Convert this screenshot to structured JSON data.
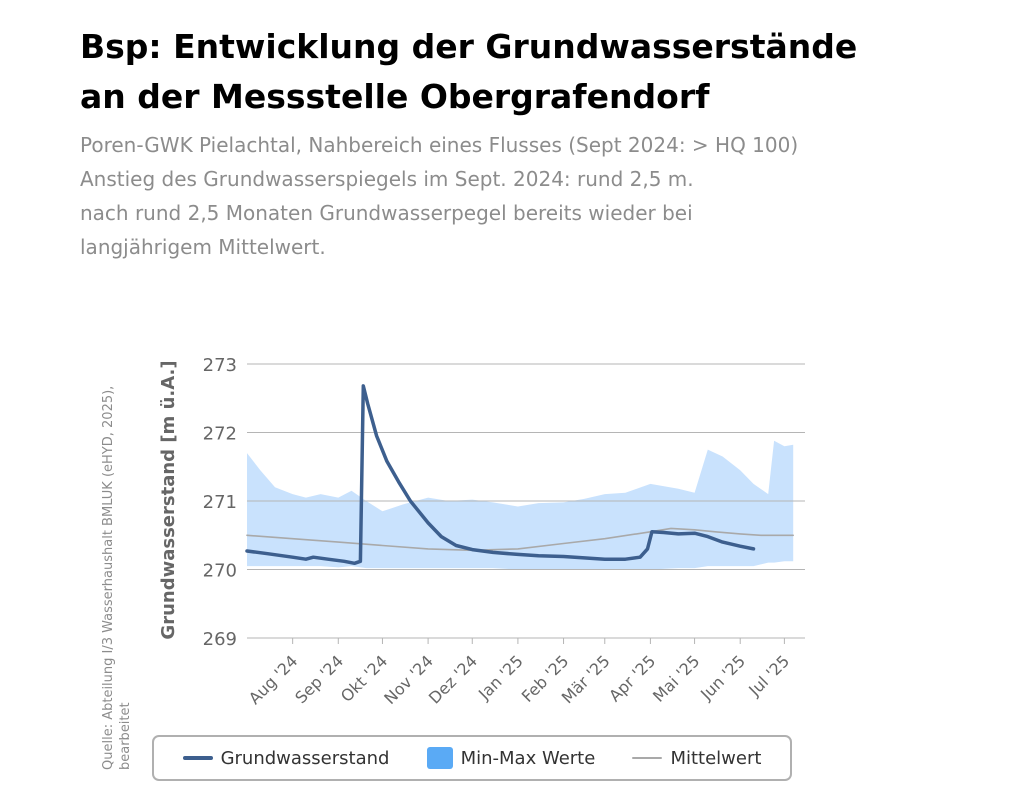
{
  "header": {
    "title_lines": [
      "Bsp: Entwicklung der Grundwasserstände",
      "an der Messstelle Obergrafendorf"
    ],
    "subtitle_lines": [
      "Poren-GWK Pielachtal, Nahbereich eines Flusses (Sept 2024: > HQ 100)",
      "Anstieg des Grundwasserspiegels im Sept. 2024: rund 2,5 m.",
      "nach rund 2,5 Monaten Grundwasserpegel bereits wieder bei",
      "langjährigem Mittelwert."
    ]
  },
  "source_lines": [
    "Quelle: Abteilung I/3 Wasserhaushalt BMLUK (eHYD, 2025),",
    "bearbeitet"
  ],
  "colors": {
    "series_main": "#3d5f8e",
    "band": "#c9e2fd",
    "band_legend": "#5aaaf5",
    "mean": "#a9a9a9",
    "grid": "#b5b5b5",
    "axis_text": "#666666"
  },
  "chart_data": {
    "type": "line",
    "ylabel": "Grundwasserstand [m ü.A.]",
    "ylim": [
      269,
      273
    ],
    "yticks": [
      269,
      270,
      271,
      272,
      273
    ],
    "xlim": [
      "2024-07-01",
      "2025-07-15"
    ],
    "grid": true,
    "legend_position": "bottom",
    "x_ticks": [
      {
        "date": "2024-08-01",
        "label": "Aug '24"
      },
      {
        "date": "2024-09-01",
        "label": "Sep '24"
      },
      {
        "date": "2024-10-01",
        "label": "Okt '24"
      },
      {
        "date": "2024-11-01",
        "label": "Nov '24"
      },
      {
        "date": "2024-12-01",
        "label": "Dez '24"
      },
      {
        "date": "2025-01-01",
        "label": "Jan '25"
      },
      {
        "date": "2025-02-01",
        "label": "Feb '25"
      },
      {
        "date": "2025-03-01",
        "label": "Mär '25"
      },
      {
        "date": "2025-04-01",
        "label": "Apr '25"
      },
      {
        "date": "2025-05-01",
        "label": "Mai '25"
      },
      {
        "date": "2025-06-01",
        "label": "Jun '25"
      },
      {
        "date": "2025-07-01",
        "label": "Jul '25"
      }
    ],
    "series": [
      {
        "name": "Grundwasserstand",
        "kind": "line",
        "points": [
          [
            "2024-07-01",
            270.27
          ],
          [
            "2024-07-15",
            270.23
          ],
          [
            "2024-08-01",
            270.18
          ],
          [
            "2024-08-10",
            270.15
          ],
          [
            "2024-08-15",
            270.18
          ],
          [
            "2024-08-25",
            270.15
          ],
          [
            "2024-09-05",
            270.12
          ],
          [
            "2024-09-12",
            270.09
          ],
          [
            "2024-09-16",
            270.12
          ],
          [
            "2024-09-18",
            272.68
          ],
          [
            "2024-09-21",
            272.42
          ],
          [
            "2024-09-27",
            271.95
          ],
          [
            "2024-10-04",
            271.58
          ],
          [
            "2024-10-12",
            271.28
          ],
          [
            "2024-10-20",
            271.0
          ],
          [
            "2024-11-01",
            270.68
          ],
          [
            "2024-11-10",
            270.48
          ],
          [
            "2024-11-20",
            270.35
          ],
          [
            "2024-12-01",
            270.29
          ],
          [
            "2024-12-15",
            270.25
          ],
          [
            "2025-01-01",
            270.22
          ],
          [
            "2025-01-15",
            270.2
          ],
          [
            "2025-02-01",
            270.19
          ],
          [
            "2025-02-15",
            270.17
          ],
          [
            "2025-03-01",
            270.15
          ],
          [
            "2025-03-15",
            270.15
          ],
          [
            "2025-03-25",
            270.18
          ],
          [
            "2025-03-30",
            270.3
          ],
          [
            "2025-04-02",
            270.55
          ],
          [
            "2025-04-10",
            270.54
          ],
          [
            "2025-04-20",
            270.52
          ],
          [
            "2025-05-01",
            270.53
          ],
          [
            "2025-05-10",
            270.48
          ],
          [
            "2025-05-20",
            270.4
          ],
          [
            "2025-06-01",
            270.34
          ],
          [
            "2025-06-10",
            270.3
          ]
        ]
      },
      {
        "name": "Min-Max Werte",
        "kind": "band",
        "points": [
          [
            "2024-07-01",
            270.05,
            271.7
          ],
          [
            "2024-07-10",
            270.05,
            271.45
          ],
          [
            "2024-07-20",
            270.05,
            271.2
          ],
          [
            "2024-08-01",
            270.05,
            271.1
          ],
          [
            "2024-08-10",
            270.05,
            271.05
          ],
          [
            "2024-08-20",
            270.05,
            271.1
          ],
          [
            "2024-09-01",
            270.03,
            271.05
          ],
          [
            "2024-09-10",
            270.05,
            271.15
          ],
          [
            "2024-09-20",
            270.02,
            271.0
          ],
          [
            "2024-10-01",
            270.02,
            270.85
          ],
          [
            "2024-10-15",
            270.02,
            270.95
          ],
          [
            "2024-11-01",
            270.02,
            271.05
          ],
          [
            "2024-11-15",
            270.02,
            271.0
          ],
          [
            "2024-12-01",
            270.02,
            271.02
          ],
          [
            "2024-12-15",
            270.02,
            270.98
          ],
          [
            "2025-01-01",
            270.0,
            270.92
          ],
          [
            "2025-01-15",
            270.0,
            270.97
          ],
          [
            "2025-02-01",
            270.0,
            270.98
          ],
          [
            "2025-02-15",
            270.0,
            271.03
          ],
          [
            "2025-03-01",
            270.0,
            271.1
          ],
          [
            "2025-03-15",
            270.0,
            271.12
          ],
          [
            "2025-04-01",
            270.0,
            271.25
          ],
          [
            "2025-04-20",
            270.02,
            271.18
          ],
          [
            "2025-05-01",
            270.02,
            271.12
          ],
          [
            "2025-05-10",
            270.05,
            271.75
          ],
          [
            "2025-05-20",
            270.05,
            271.65
          ],
          [
            "2025-06-01",
            270.05,
            271.45
          ],
          [
            "2025-06-10",
            270.05,
            271.25
          ],
          [
            "2025-06-20",
            270.1,
            271.1
          ],
          [
            "2025-06-24",
            270.1,
            271.88
          ],
          [
            "2025-07-01",
            270.12,
            271.8
          ],
          [
            "2025-07-07",
            270.12,
            271.82
          ]
        ]
      },
      {
        "name": "Mittelwert",
        "kind": "line",
        "points": [
          [
            "2024-07-01",
            270.5
          ],
          [
            "2024-08-01",
            270.45
          ],
          [
            "2024-09-01",
            270.4
          ],
          [
            "2024-10-01",
            270.35
          ],
          [
            "2024-11-01",
            270.3
          ],
          [
            "2024-12-01",
            270.28
          ],
          [
            "2025-01-01",
            270.3
          ],
          [
            "2025-02-01",
            270.38
          ],
          [
            "2025-03-01",
            270.45
          ],
          [
            "2025-04-01",
            270.55
          ],
          [
            "2025-04-15",
            270.6
          ],
          [
            "2025-05-01",
            270.58
          ],
          [
            "2025-05-15",
            270.55
          ],
          [
            "2025-06-01",
            270.52
          ],
          [
            "2025-06-15",
            270.5
          ],
          [
            "2025-07-07",
            270.5
          ]
        ]
      }
    ]
  }
}
